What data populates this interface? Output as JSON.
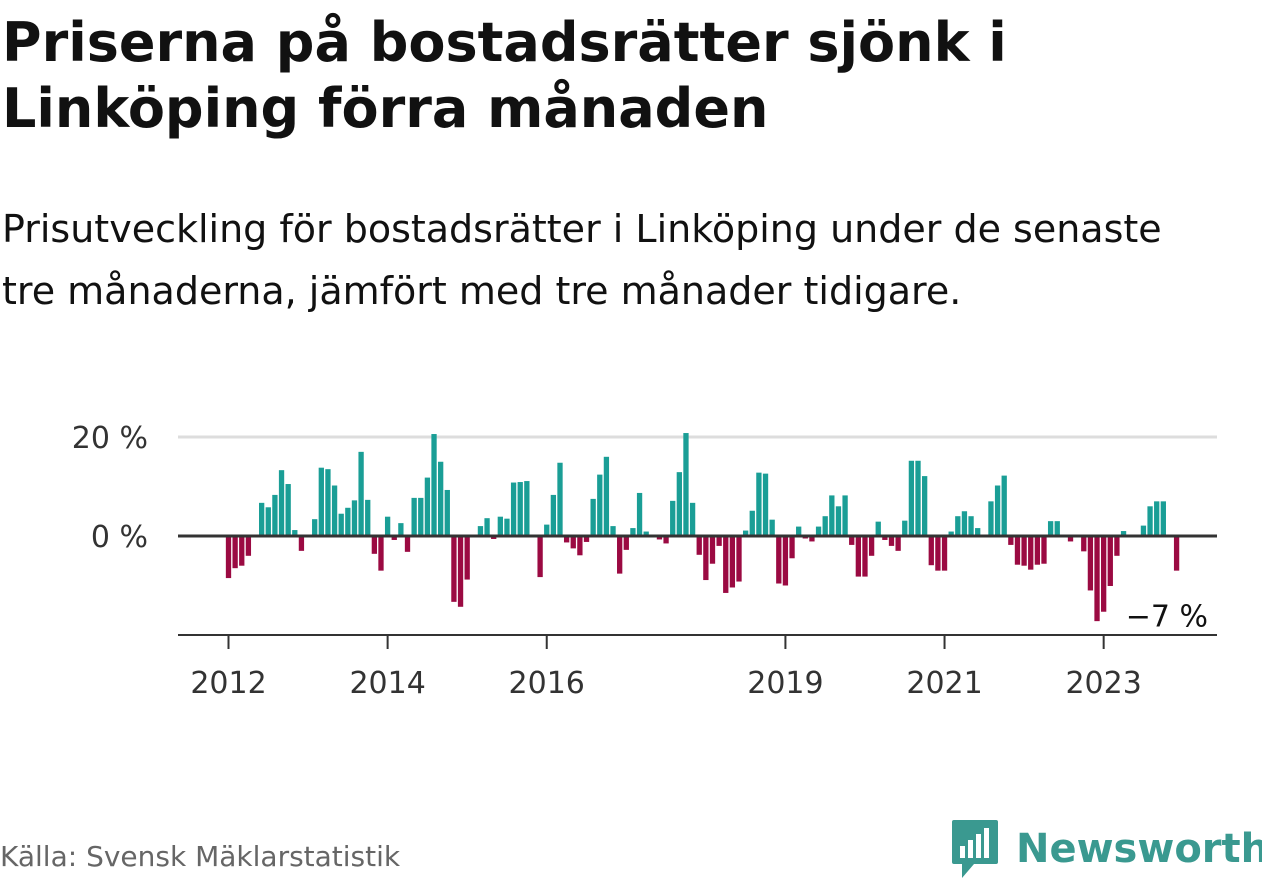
{
  "title": "Priserna på bostadsrätter sjönk i Linköping förra månaden",
  "subtitle": "Prisutveckling för bostadsrätter i Linköping under de senaste tre månaderna, jämfört med tre månader tidigare.",
  "source": "Källa: Svensk Mäklarstatistik",
  "brand": {
    "name": "Newsworthy",
    "logo_icon": "newsworthy-logo-icon",
    "color": "#3a9990"
  },
  "chart_data": {
    "type": "bar",
    "title": "Priserna på bostadsrätter sjönk i Linköping förra månaden",
    "subtitle": "Prisutveckling för bostadsrätter i Linköping under de senaste tre månaderna, jämfört med tre månader tidigare.",
    "xlabel": "",
    "ylabel": "",
    "x_start": "2012-01",
    "y_ticks": [
      {
        "value": 0,
        "label": "0 %"
      },
      {
        "value": 20,
        "label": "20 %"
      }
    ],
    "x_ticks": [
      {
        "label": "2012",
        "date": "2012-01"
      },
      {
        "label": "2014",
        "date": "2014-01"
      },
      {
        "label": "2016",
        "date": "2016-01"
      },
      {
        "label": "2019",
        "date": "2019-01"
      },
      {
        "label": "2021",
        "date": "2021-01"
      },
      {
        "label": "2023",
        "date": "2023-01"
      }
    ],
    "ylim": [
      -20,
      20
    ],
    "grid": true,
    "positive_color": "#1a9e96",
    "negative_color": "#9b0a42",
    "last_value_label": "−7 %",
    "values": [
      -8.5,
      -6.5,
      -6,
      -4,
      0,
      6.7,
      5.8,
      8.3,
      13.3,
      10.5,
      1.2,
      -3,
      0,
      3.4,
      13.8,
      13.5,
      10.2,
      4.5,
      5.7,
      7.2,
      17,
      7.3,
      -3.6,
      -7,
      3.9,
      -0.8,
      2.6,
      -3.2,
      7.7,
      7.7,
      11.8,
      20.6,
      15,
      9.3,
      -13.3,
      -14.3,
      -8.8,
      0,
      2,
      3.6,
      -0.6,
      3.9,
      3.5,
      10.8,
      10.9,
      11.1,
      0,
      -8.3,
      2.3,
      8.3,
      14.8,
      -1.3,
      -2.5,
      -3.9,
      -1.2,
      7.5,
      12.4,
      16,
      2,
      -7.6,
      -2.8,
      1.6,
      8.7,
      0.9,
      0,
      -0.7,
      -1.5,
      7.1,
      12.9,
      20.8,
      6.7,
      -3.8,
      -8.9,
      -5.6,
      -2,
      -11.5,
      -10.4,
      -9.2,
      1.1,
      5.1,
      12.8,
      12.6,
      3.3,
      -9.6,
      -10,
      -4.5,
      1.9,
      -0.5,
      -1.1,
      1.9,
      4,
      8.2,
      6,
      8.2,
      -1.8,
      -8.2,
      -8.2,
      -4,
      2.9,
      -0.8,
      -2,
      -3,
      3.1,
      15.2,
      15.2,
      12.1,
      -5.9,
      -7,
      -7,
      0.9,
      4,
      5,
      4,
      1.6,
      -0.3,
      7,
      10.2,
      12.2,
      -1.8,
      -5.8,
      -6,
      -6.8,
      -5.8,
      -5.6,
      3,
      3,
      0,
      -1.1,
      0,
      -3.1,
      -11,
      -17.2,
      -15.3,
      -10.1,
      -4,
      1,
      0,
      0,
      2.1,
      6,
      7,
      7,
      0,
      -7
    ]
  }
}
